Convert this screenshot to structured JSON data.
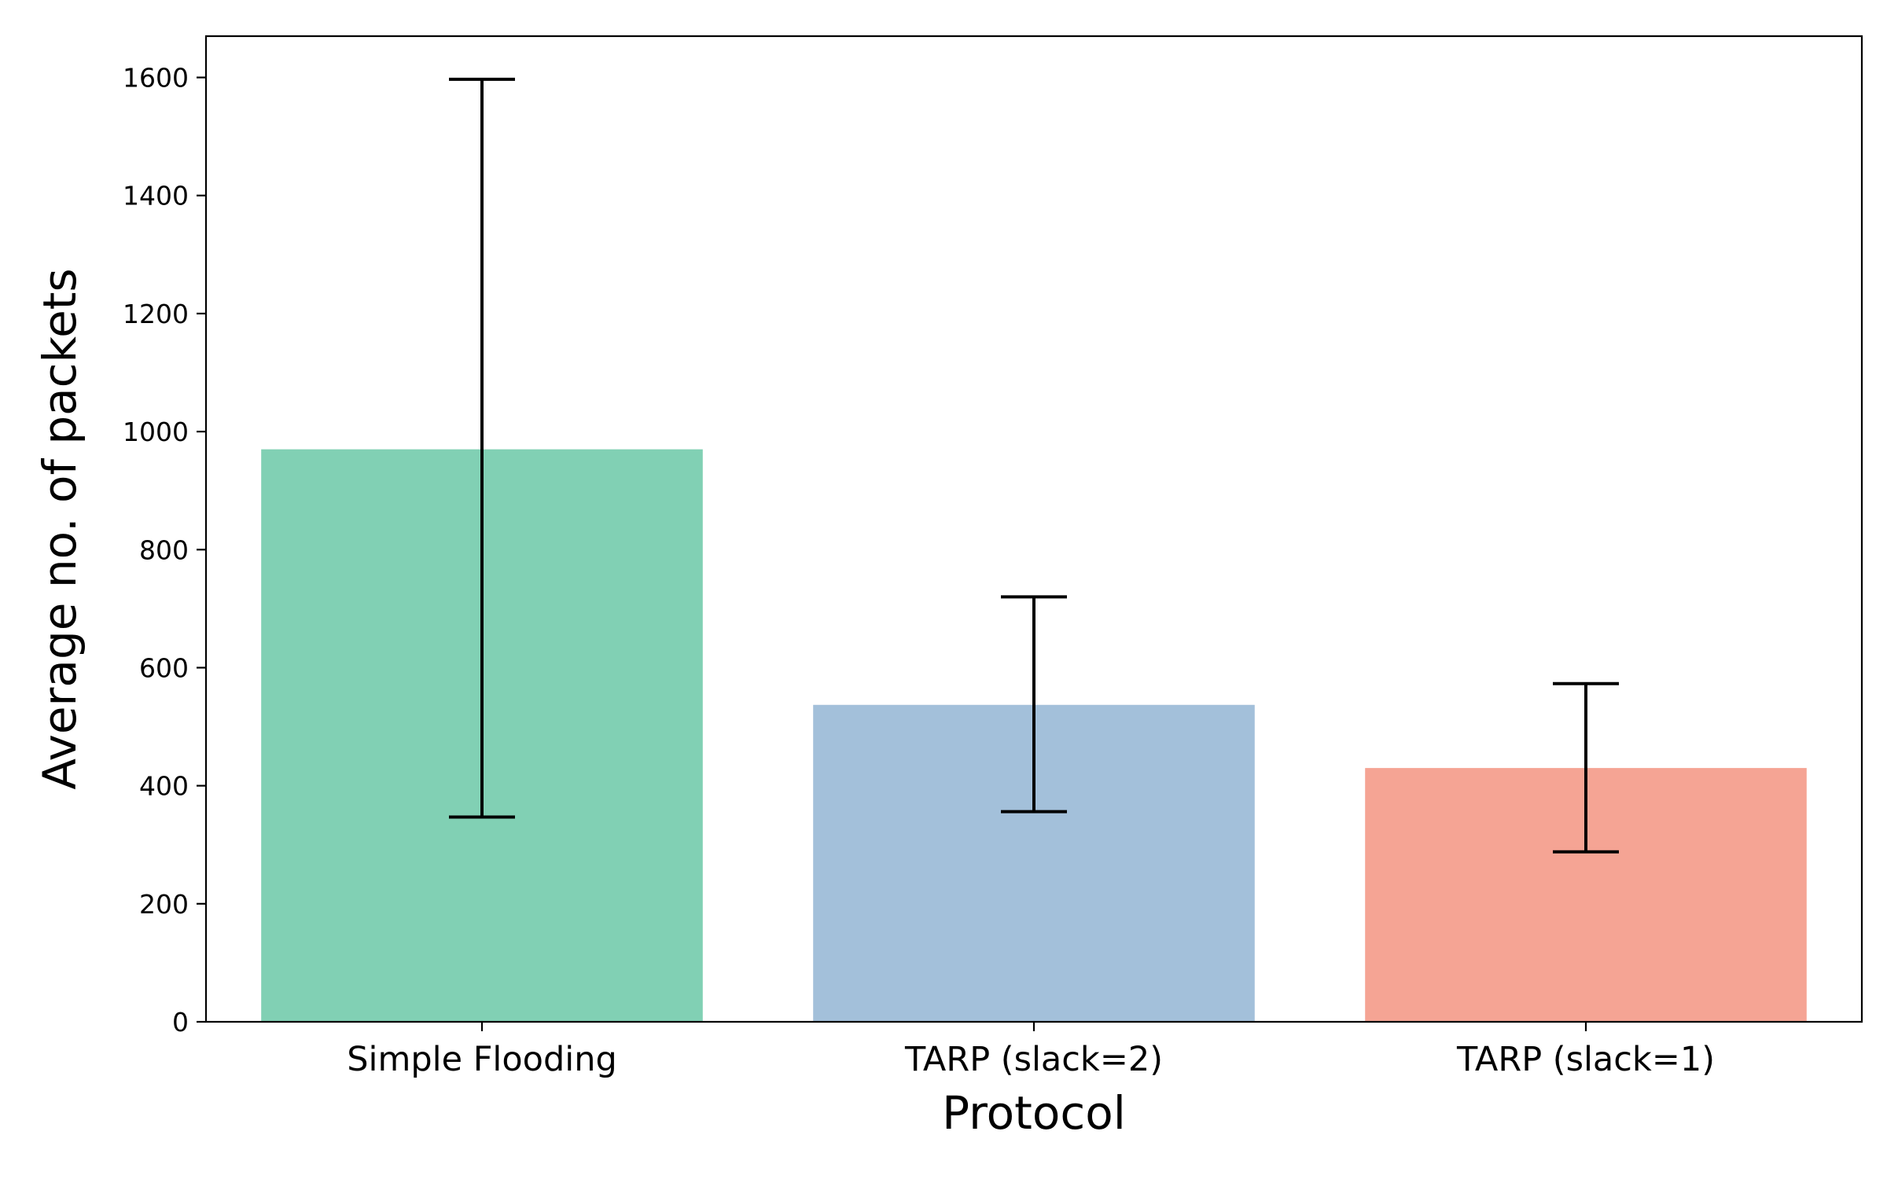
{
  "chart_data": {
    "type": "bar",
    "title": "",
    "xlabel": "Protocol",
    "ylabel": "Average no. of packets",
    "categories": [
      "Simple Flooding",
      "TARP (slack=2)",
      "TARP (slack=1)"
    ],
    "values": [
      970,
      537,
      430
    ],
    "error_low": [
      347,
      356,
      288
    ],
    "error_high": [
      1597,
      720,
      573
    ],
    "colors": [
      "#81d0b4",
      "#a3c0da",
      "#f5a494"
    ],
    "ylim": [
      0,
      1670
    ],
    "yticks": [
      0,
      200,
      400,
      600,
      800,
      1000,
      1200,
      1400,
      1600
    ],
    "grid": false,
    "legend": "none"
  }
}
